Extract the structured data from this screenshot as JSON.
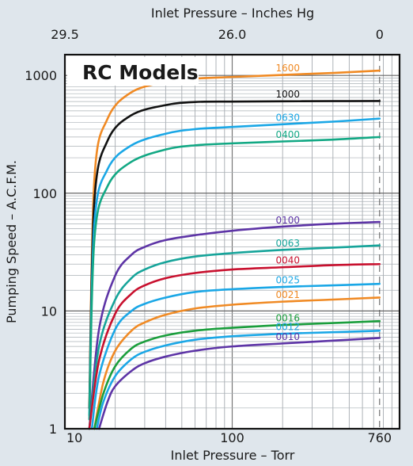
{
  "chart_data": {
    "type": "line",
    "title": "RC Models",
    "xlabel": "Inlet Pressure – Torr",
    "ylabel": "Pumping Speed – A.C.F.M.",
    "top_xlabel": "Inlet Pressure – Inches Hg",
    "x_scale": "log",
    "y_scale": "log",
    "xlim": [
      10,
      1000
    ],
    "ylim": [
      1,
      1500
    ],
    "x_ticks": [
      "10",
      "100",
      "760"
    ],
    "x_tick_values": [
      10,
      100,
      760
    ],
    "top_ticks": [
      "29.5",
      "26.0",
      "0"
    ],
    "top_tick_values": [
      10,
      100,
      760
    ],
    "y_ticks": [
      "1",
      "10",
      "100",
      "1000"
    ],
    "y_tick_values": [
      1,
      10,
      100,
      1000
    ],
    "grid": true,
    "series": [
      {
        "label": "1600",
        "color": "#f08a24",
        "x": [
          14,
          15,
          18,
          25,
          40,
          60,
          100,
          200,
          400,
          760
        ],
        "y": [
          1.5,
          130,
          430,
          720,
          880,
          940,
          970,
          1010,
          1050,
          1100
        ]
      },
      {
        "label": "1000",
        "color": "#111111",
        "x": [
          14,
          15,
          18,
          25,
          40,
          60,
          100,
          200,
          400,
          760
        ],
        "y": [
          1.5,
          85,
          280,
          460,
          560,
          595,
          600,
          603,
          605,
          607
        ]
      },
      {
        "label": "0630",
        "color": "#1aa7e6",
        "x": [
          14,
          15,
          18,
          25,
          40,
          60,
          100,
          200,
          400,
          760
        ],
        "y": [
          1.3,
          55,
          160,
          255,
          320,
          350,
          365,
          385,
          405,
          430
        ]
      },
      {
        "label": "0400",
        "color": "#12a884",
        "x": [
          14,
          15,
          18,
          25,
          40,
          60,
          100,
          200,
          400,
          760
        ],
        "y": [
          1.2,
          40,
          115,
          185,
          235,
          255,
          265,
          275,
          285,
          300
        ]
      },
      {
        "label": "0100",
        "color": "#5d34a6",
        "x": [
          14,
          16,
          20,
          25,
          30,
          40,
          60,
          100,
          200,
          400,
          760
        ],
        "y": [
          1,
          7,
          20,
          30,
          35,
          40,
          44,
          48,
          52,
          55,
          57
        ]
      },
      {
        "label": "0063",
        "color": "#16a49a",
        "x": [
          14,
          16,
          20,
          25,
          30,
          40,
          60,
          100,
          200,
          400,
          760
        ],
        "y": [
          1,
          5,
          12.5,
          19,
          22.5,
          26,
          29,
          31,
          33,
          34.5,
          36
        ]
      },
      {
        "label": "0040",
        "color": "#c8102e",
        "x": [
          14,
          16,
          20,
          25,
          30,
          40,
          60,
          100,
          200,
          400,
          760
        ],
        "y": [
          1,
          3.8,
          9.5,
          14,
          16.5,
          19,
          21,
          22.5,
          23.5,
          24.5,
          25
        ]
      },
      {
        "label": "0025",
        "color": "#1aa7e6",
        "x": [
          14.5,
          16,
          20,
          25,
          30,
          40,
          60,
          100,
          200,
          400,
          760
        ],
        "y": [
          1,
          2.8,
          7,
          10,
          11.5,
          13,
          14.5,
          15.3,
          16,
          16.5,
          17
        ]
      },
      {
        "label": "0021",
        "color": "#f08a24",
        "x": [
          15,
          17,
          20,
          25,
          30,
          40,
          60,
          100,
          200,
          400,
          760
        ],
        "y": [
          1,
          2.5,
          4.6,
          6.8,
          8,
          9.3,
          10.5,
          11.3,
          12,
          12.5,
          13
        ]
      },
      {
        "label": "0016",
        "color": "#1a9e3c",
        "x": [
          15,
          17,
          20,
          25,
          30,
          40,
          60,
          100,
          200,
          400,
          760
        ],
        "y": [
          1,
          2,
          3.4,
          4.8,
          5.5,
          6.2,
          6.8,
          7.2,
          7.6,
          7.9,
          8.2
        ]
      },
      {
        "label": "0012",
        "color": "#1aa7e6",
        "x": [
          15.5,
          17,
          20,
          25,
          30,
          40,
          60,
          100,
          200,
          400,
          760
        ],
        "y": [
          1,
          1.7,
          2.8,
          3.9,
          4.5,
          5.1,
          5.7,
          6.1,
          6.4,
          6.6,
          6.8
        ]
      },
      {
        "label": "0010",
        "color": "#5d34a6",
        "x": [
          16,
          18,
          20,
          25,
          30,
          40,
          60,
          100,
          200,
          400,
          760
        ],
        "y": [
          1,
          1.7,
          2.3,
          3.1,
          3.6,
          4.1,
          4.6,
          5,
          5.3,
          5.6,
          5.9
        ]
      }
    ]
  }
}
